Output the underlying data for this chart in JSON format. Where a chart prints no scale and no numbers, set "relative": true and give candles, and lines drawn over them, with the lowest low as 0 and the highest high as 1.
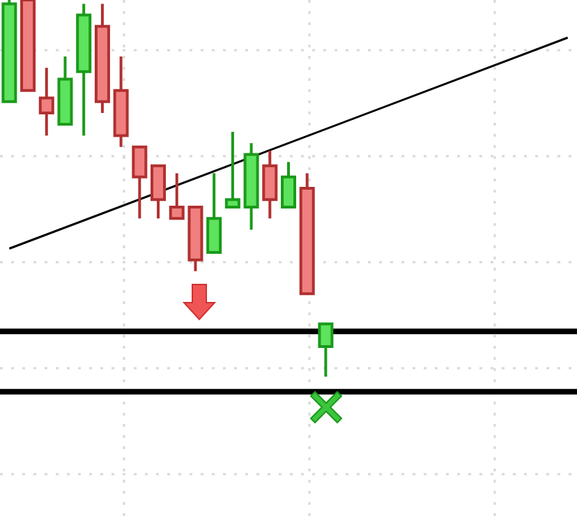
{
  "chart_data": {
    "type": "candlestick",
    "relative": true,
    "grid": true,
    "legend": false,
    "tick_labels": false,
    "categories": [
      null,
      null,
      null,
      null,
      null,
      null,
      null,
      null,
      null,
      null,
      null,
      null,
      null,
      null,
      null,
      null,
      null,
      null,
      null,
      null,
      null,
      null,
      null,
      null,
      null,
      null,
      null,
      null,
      null,
      null,
      null
    ],
    "ohlc": [
      [
        0.73,
        1.0,
        0.73,
        0.99
      ],
      [
        1.0,
        1.0,
        0.76,
        0.76
      ],
      [
        0.74,
        0.82,
        0.64,
        0.7
      ],
      [
        0.67,
        0.85,
        0.67,
        0.79
      ],
      [
        0.81,
        0.99,
        0.64,
        0.96
      ],
      [
        0.93,
        0.99,
        0.7,
        0.73
      ],
      [
        0.76,
        0.85,
        0.61,
        0.64
      ],
      [
        0.61,
        0.61,
        0.42,
        0.53
      ],
      [
        0.56,
        0.56,
        0.42,
        0.47
      ],
      [
        0.45,
        0.54,
        0.42,
        0.42
      ],
      [
        0.45,
        0.45,
        0.28,
        0.31
      ],
      [
        0.33,
        0.54,
        0.33,
        0.42
      ],
      [
        0.45,
        0.65,
        0.45,
        0.47
      ],
      [
        0.45,
        0.62,
        0.39,
        0.59
      ],
      [
        0.56,
        0.6,
        0.42,
        0.47
      ],
      [
        0.45,
        0.57,
        0.45,
        0.53
      ],
      [
        0.5,
        0.54,
        0.22,
        0.22
      ],
      [
        0.08,
        0.14,
        0,
        0.14
      ],
      null,
      null,
      null,
      null,
      null,
      null,
      null,
      null,
      null,
      null,
      null,
      null,
      null
    ],
    "series": [
      {
        "type": "line",
        "color": "#000000",
        "values": [
          0.34,
          null,
          null,
          null,
          null,
          null,
          null,
          null,
          null,
          null,
          null,
          null,
          null,
          null,
          null,
          null,
          null,
          null,
          null,
          null,
          null,
          null,
          null,
          null,
          null,
          null,
          null,
          null,
          null,
          null,
          0.9
        ]
      }
    ],
    "ref_lines": [
      {
        "axis": "y",
        "value": 0.12,
        "color": "#000000"
      },
      {
        "axis": "y",
        "value": -0.04,
        "color": "#000000"
      }
    ]
  }
}
